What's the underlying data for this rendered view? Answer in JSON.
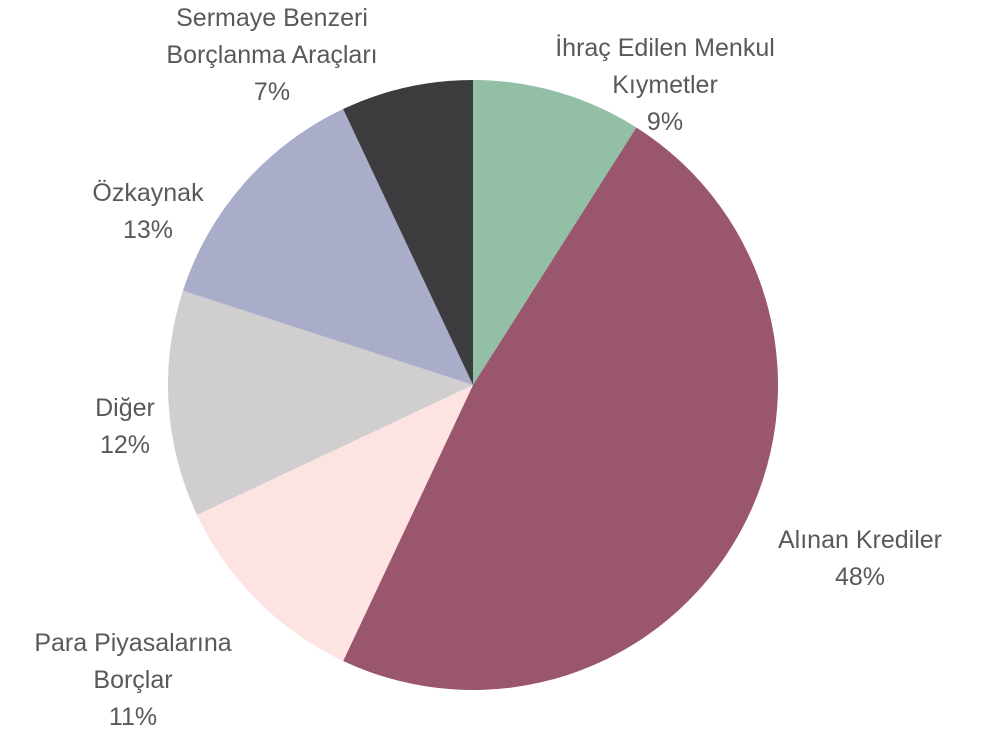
{
  "chart_data": {
    "type": "pie",
    "categories": [
      "İhraç Edilen Menkul Kıymetler",
      "Alınan Krediler",
      "Para Piyasalarına Borçlar",
      "Diğer",
      "Özkaynak",
      "Sermaye Benzeri Borçlanma Araçları"
    ],
    "values": [
      9,
      48,
      11,
      12,
      13,
      7
    ],
    "value_labels": [
      "9%",
      "48%",
      "11%",
      "12%",
      "13%",
      "7%"
    ],
    "colors": [
      "#93bfa7",
      "#9a566c",
      "#fde4e3",
      "#d0cecf",
      "#aaadca",
      "#3c3b3e"
    ]
  }
}
